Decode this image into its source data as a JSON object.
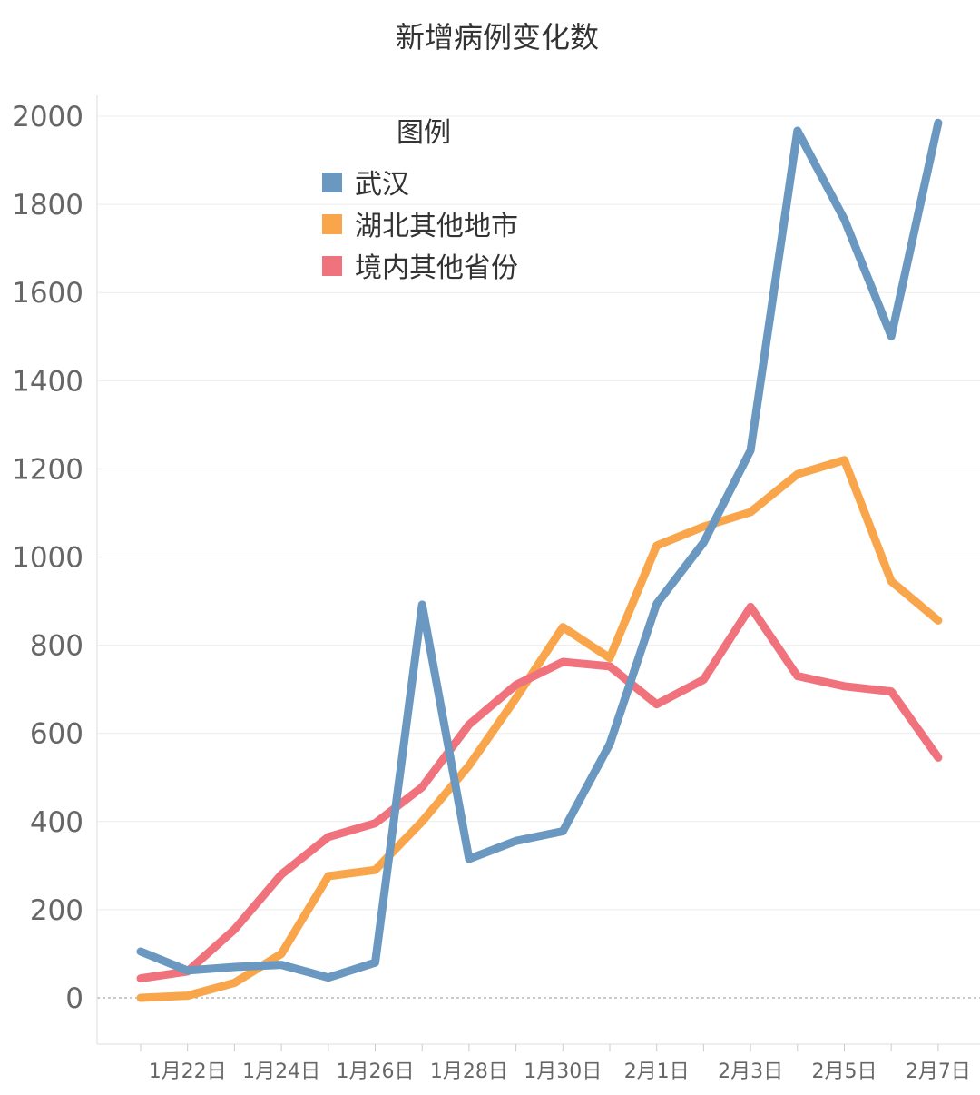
{
  "chart_data": {
    "type": "line",
    "title": "新增病例变化数",
    "xlabel": "",
    "ylabel": "",
    "ylim": [
      -100,
      2100
    ],
    "yticks": [
      0,
      200,
      400,
      600,
      800,
      1000,
      1200,
      1400,
      1600,
      1800,
      2000
    ],
    "x": [
      "1月21日",
      "1月22日",
      "1月23日",
      "1月24日",
      "1月25日",
      "1月26日",
      "1月27日",
      "1月28日",
      "1月29日",
      "1月30日",
      "1月31日",
      "2月1日",
      "2月2日",
      "2月3日",
      "2月4日",
      "2月5日",
      "2月6日",
      "2月7日"
    ],
    "xtick_labels": [
      "1月22日",
      "1月24日",
      "1月26日",
      "1月28日",
      "1月30日",
      "2月1日",
      "2月3日",
      "2月5日",
      "2月7日"
    ],
    "legend": {
      "title": "图例",
      "position": "top-center"
    },
    "grid": true,
    "series": [
      {
        "name": "武汉",
        "color": "#6a98c1",
        "values": [
          105,
          62,
          70,
          75,
          46,
          80,
          892,
          315,
          356,
          378,
          576,
          894,
          1033,
          1242,
          1967,
          1766,
          1501,
          1985
        ]
      },
      {
        "name": "湖北其他地市",
        "color": "#f9a54b",
        "values": [
          0,
          5,
          34,
          100,
          276,
          290,
          400,
          527,
          680,
          841,
          771,
          1026,
          1069,
          1102,
          1188,
          1220,
          945,
          856
        ]
      },
      {
        "name": "境内其他省份",
        "color": "#f0727d",
        "values": [
          44,
          60,
          155,
          280,
          365,
          396,
          478,
          620,
          710,
          762,
          752,
          666,
          722,
          887,
          730,
          707,
          695,
          545
        ]
      }
    ]
  }
}
